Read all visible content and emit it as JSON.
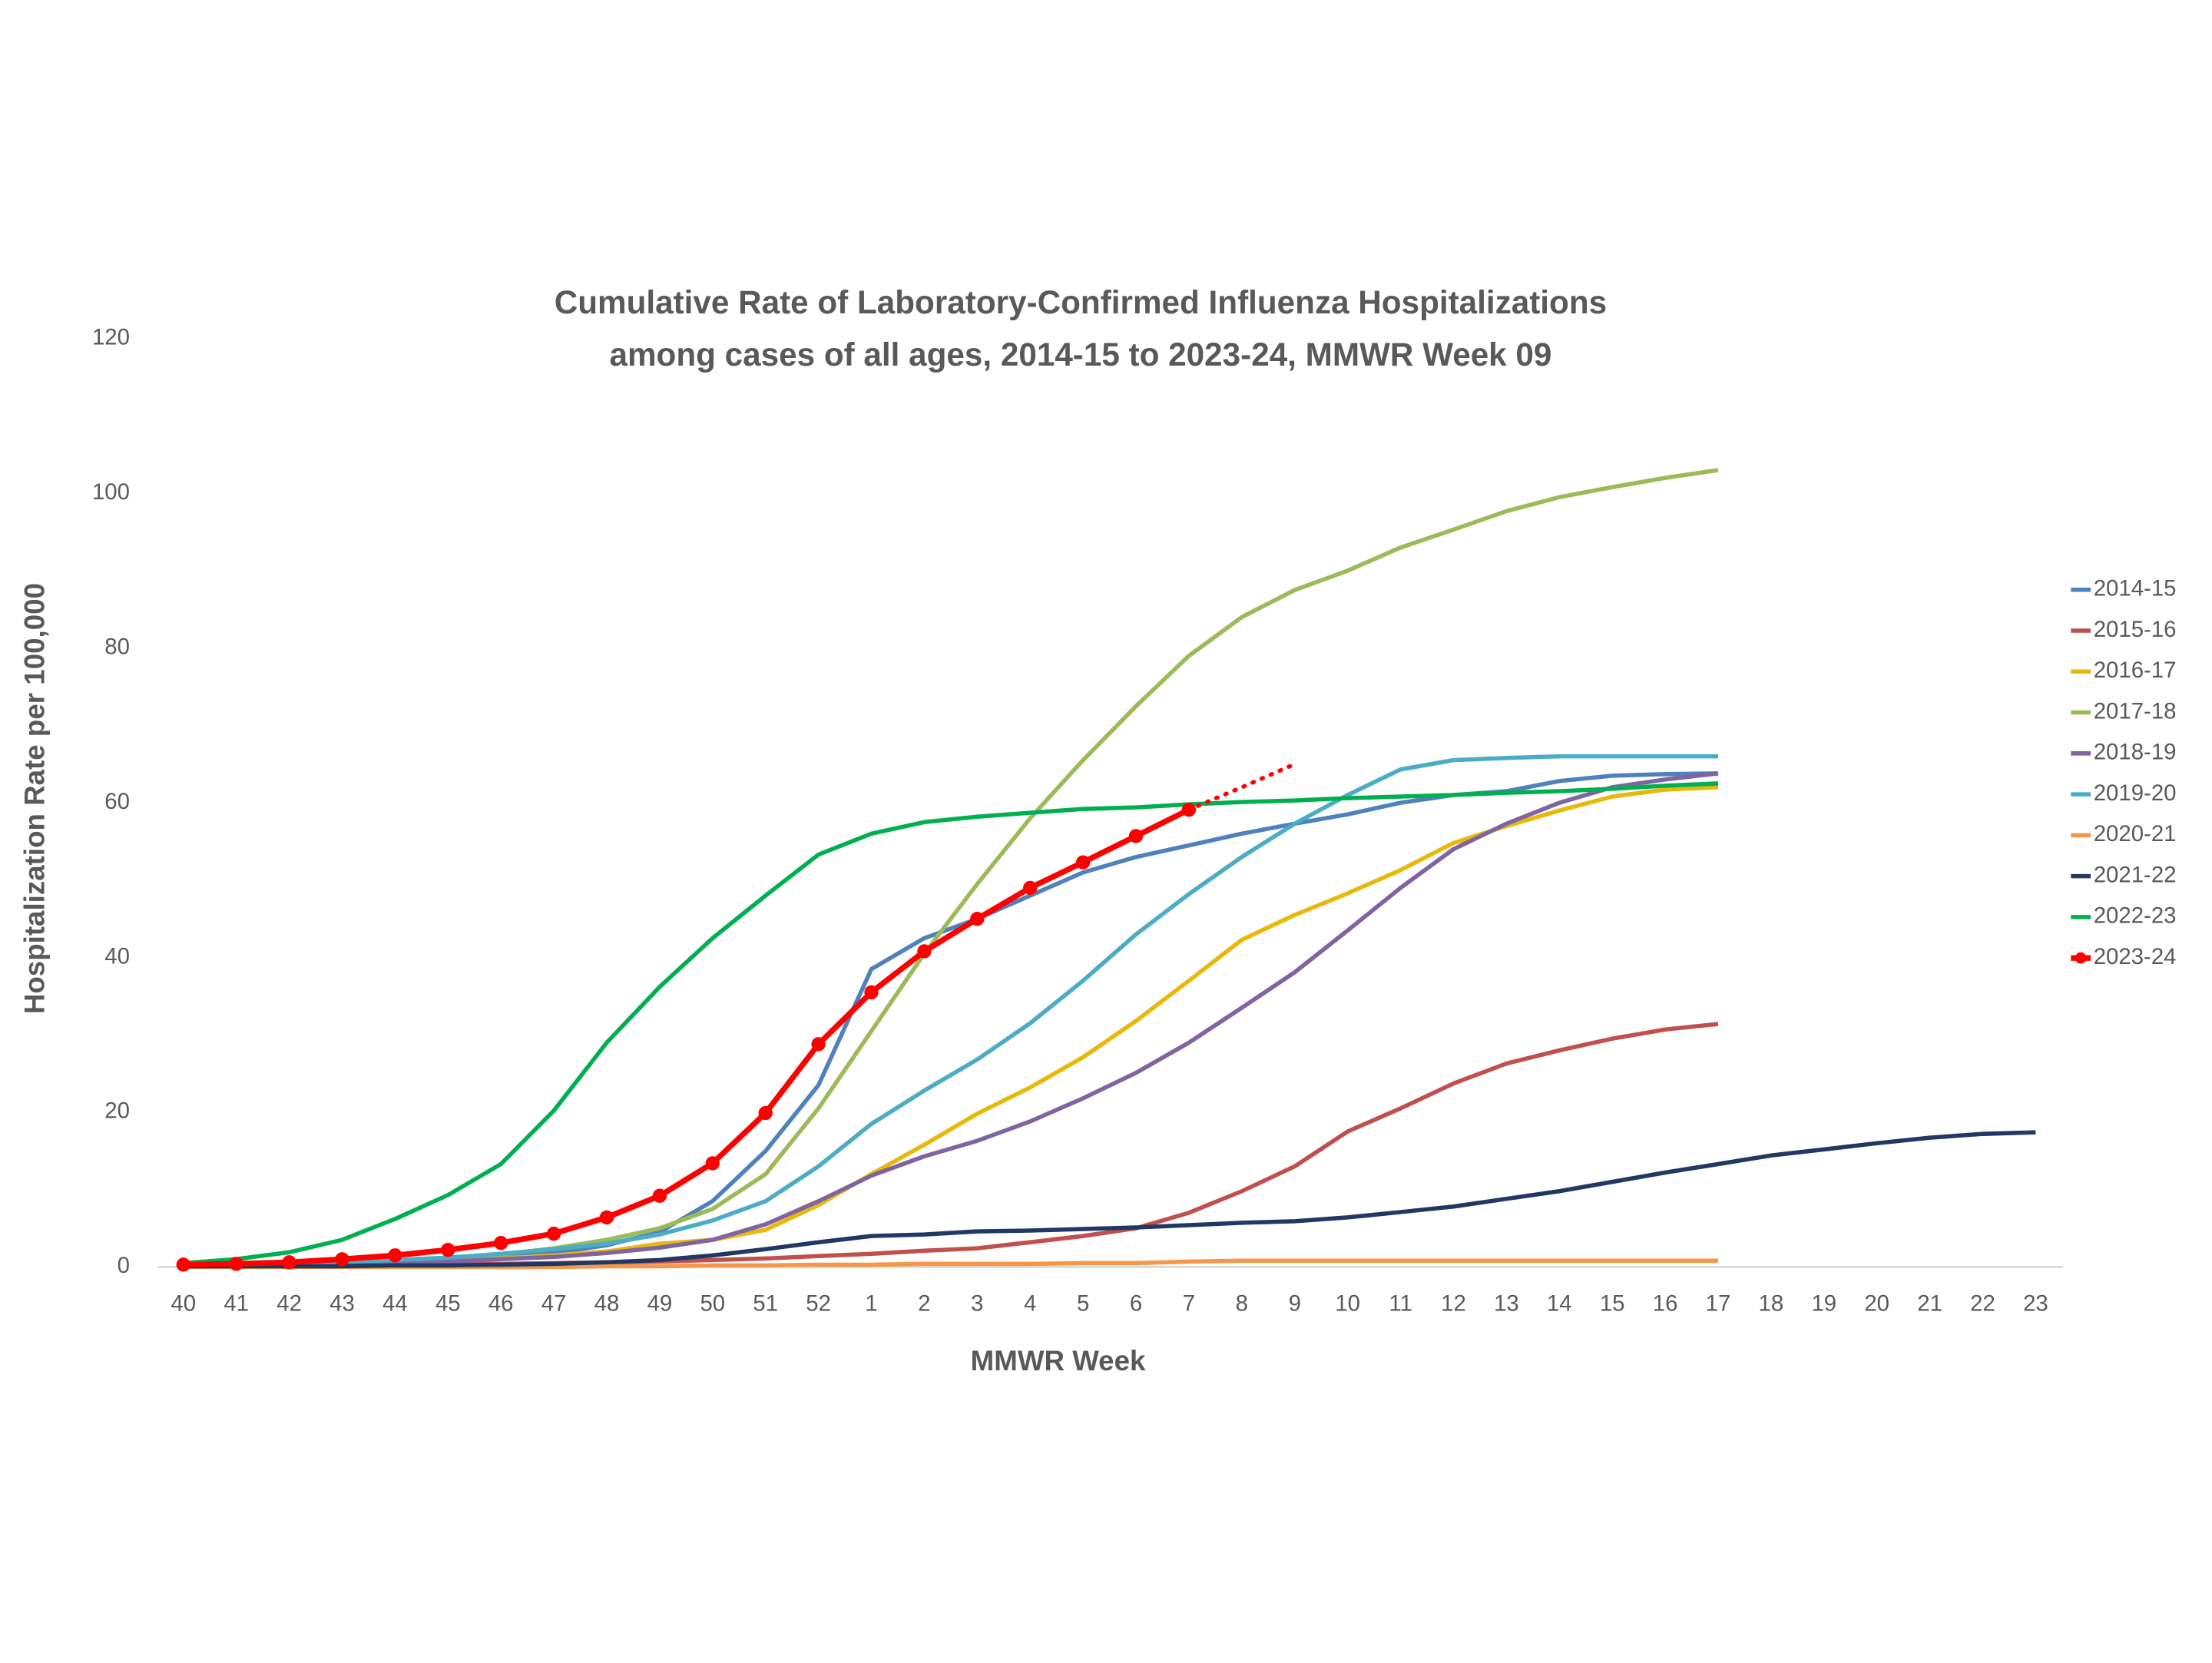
{
  "chart_data": {
    "type": "line",
    "title": [
      "Cumulative Rate of Laboratory-Confirmed Influenza Hospitalizations",
      "among cases of all ages, 2014-15 to 2023-24, MMWR Week 09"
    ],
    "x_label": "MMWR Week",
    "y_label": "Hospitalization Rate per 100,000",
    "categories": [
      "40",
      "41",
      "42",
      "43",
      "44",
      "45",
      "46",
      "47",
      "48",
      "49",
      "50",
      "51",
      "52",
      "1",
      "2",
      "3",
      "4",
      "5",
      "6",
      "7",
      "8",
      "9",
      "10",
      "11",
      "12",
      "13",
      "14",
      "15",
      "16",
      "17",
      "18",
      "19",
      "20",
      "21",
      "22",
      "23"
    ],
    "ylim": [
      0,
      120
    ],
    "yticks": [
      0,
      20,
      40,
      60,
      80,
      100,
      120
    ],
    "grid": false,
    "legend": "right",
    "series": [
      {
        "name": "2014-15",
        "color": "#4F81BD",
        "values": [
          0.3,
          0.4,
          0.5,
          0.6,
          0.8,
          1,
          1.3,
          1.8,
          2.8,
          4.5,
          8.5,
          15,
          23.5,
          38.5,
          42.5,
          45,
          48,
          51,
          53,
          54.5,
          56,
          57.3,
          58.5,
          60,
          61,
          61.5,
          62.8,
          63.5,
          63.7,
          63.8,
          null,
          null,
          null,
          null,
          null,
          null
        ]
      },
      {
        "name": "2015-16",
        "color": "#C0504D",
        "values": [
          0.1,
          0.1,
          0.2,
          0.2,
          0.3,
          0.3,
          0.4,
          0.5,
          0.6,
          0.7,
          0.9,
          1.1,
          1.4,
          1.7,
          2.1,
          2.4,
          3.2,
          4,
          5,
          7,
          9.8,
          13,
          17.5,
          20.5,
          23.7,
          26.3,
          28,
          29.5,
          30.7,
          31.4,
          null,
          null,
          null,
          null,
          null,
          null
        ]
      },
      {
        "name": "2016-17",
        "color": "#E8B90A",
        "values": [
          0.2,
          0.3,
          0.4,
          0.5,
          0.7,
          0.9,
          1.1,
          1.5,
          2,
          3,
          3.5,
          4.8,
          8,
          12,
          15.8,
          19.8,
          23.2,
          27.1,
          31.8,
          37,
          42.3,
          45.5,
          48.3,
          51.3,
          54.8,
          57,
          59,
          60.8,
          61.7,
          62,
          null,
          null,
          null,
          null,
          null,
          null
        ]
      },
      {
        "name": "2017-18",
        "color": "#9BBB59",
        "values": [
          0.2,
          0.4,
          0.5,
          0.7,
          0.9,
          1.2,
          1.6,
          2.4,
          3.5,
          5,
          7.5,
          12,
          20.5,
          30.5,
          40.5,
          49.5,
          58,
          65.5,
          72.5,
          79,
          84,
          87.5,
          90,
          93,
          95.3,
          97.7,
          99.5,
          100.8,
          102,
          103,
          null,
          null,
          null,
          null,
          null,
          null
        ]
      },
      {
        "name": "2018-19",
        "color": "#8064A2",
        "values": [
          0.1,
          0.2,
          0.3,
          0.4,
          0.5,
          0.7,
          1,
          1.3,
          1.8,
          2.5,
          3.5,
          5.5,
          8.5,
          11.8,
          14.3,
          16.3,
          18.8,
          21.8,
          25.1,
          29,
          33.5,
          38.1,
          43.5,
          49,
          54,
          57.3,
          60,
          62,
          63,
          63.8,
          null,
          null,
          null,
          null,
          null,
          null
        ]
      },
      {
        "name": "2019-20",
        "color": "#4BACC6",
        "values": [
          0.2,
          0.3,
          0.5,
          0.7,
          0.9,
          1.2,
          1.7,
          2.3,
          3,
          4.2,
          6,
          8.5,
          13,
          18.5,
          22.8,
          26.8,
          31.5,
          37,
          43,
          48.2,
          53,
          57.3,
          61,
          64.3,
          65.5,
          65.8,
          66,
          66,
          66,
          66,
          null,
          null,
          null,
          null,
          null,
          null
        ]
      },
      {
        "name": "2020-21",
        "color": "#F79646",
        "values": [
          0,
          0,
          0,
          0,
          0,
          0,
          0,
          0,
          0.1,
          0.1,
          0.2,
          0.2,
          0.3,
          0.3,
          0.4,
          0.4,
          0.4,
          0.5,
          0.5,
          0.7,
          0.8,
          0.8,
          0.8,
          0.8,
          0.8,
          0.8,
          0.8,
          0.8,
          0.8,
          0.8,
          null,
          null,
          null,
          null,
          null,
          null
        ]
      },
      {
        "name": "2021-22",
        "color": "#1F3864",
        "values": [
          0.1,
          0.1,
          0.1,
          0.1,
          0.2,
          0.2,
          0.3,
          0.4,
          0.6,
          0.9,
          1.5,
          2.3,
          3.2,
          4,
          4.2,
          4.6,
          4.7,
          4.9,
          5.1,
          5.4,
          5.7,
          5.9,
          6.4,
          7.1,
          7.8,
          8.8,
          9.8,
          11,
          12.2,
          13.3,
          14.4,
          15.2,
          16,
          16.7,
          17.2,
          17.4
        ]
      },
      {
        "name": "2022-23",
        "color": "#00B050",
        "values": [
          0.5,
          1,
          1.9,
          3.5,
          6.2,
          9.3,
          13.3,
          20.2,
          29,
          36.2,
          42.5,
          48,
          53.3,
          56,
          57.5,
          58.2,
          58.7,
          59.2,
          59.4,
          59.8,
          60.1,
          60.3,
          60.6,
          60.8,
          61,
          61.3,
          61.5,
          61.8,
          62.2,
          62.5,
          null,
          null,
          null,
          null,
          null,
          null
        ]
      },
      {
        "name": "2023-24",
        "color": "#FF0000",
        "markers": true,
        "values": [
          0.3,
          0.4,
          0.6,
          1,
          1.5,
          2.2,
          3.1,
          4.3,
          6.4,
          9.2,
          13.4,
          19.9,
          28.8,
          35.5,
          40.8,
          45,
          49,
          52.3,
          55.7,
          59.1,
          null,
          null,
          null,
          null,
          null,
          null,
          null,
          null,
          null,
          null,
          null,
          null,
          null,
          null,
          null,
          null
        ],
        "dotted_values": [
          null,
          null,
          null,
          null,
          null,
          null,
          null,
          null,
          null,
          null,
          null,
          null,
          null,
          null,
          null,
          null,
          null,
          null,
          null,
          59.1,
          62,
          65,
          null,
          null,
          null,
          null,
          null,
          null,
          null,
          null,
          null,
          null,
          null,
          null,
          null,
          null
        ]
      }
    ]
  }
}
